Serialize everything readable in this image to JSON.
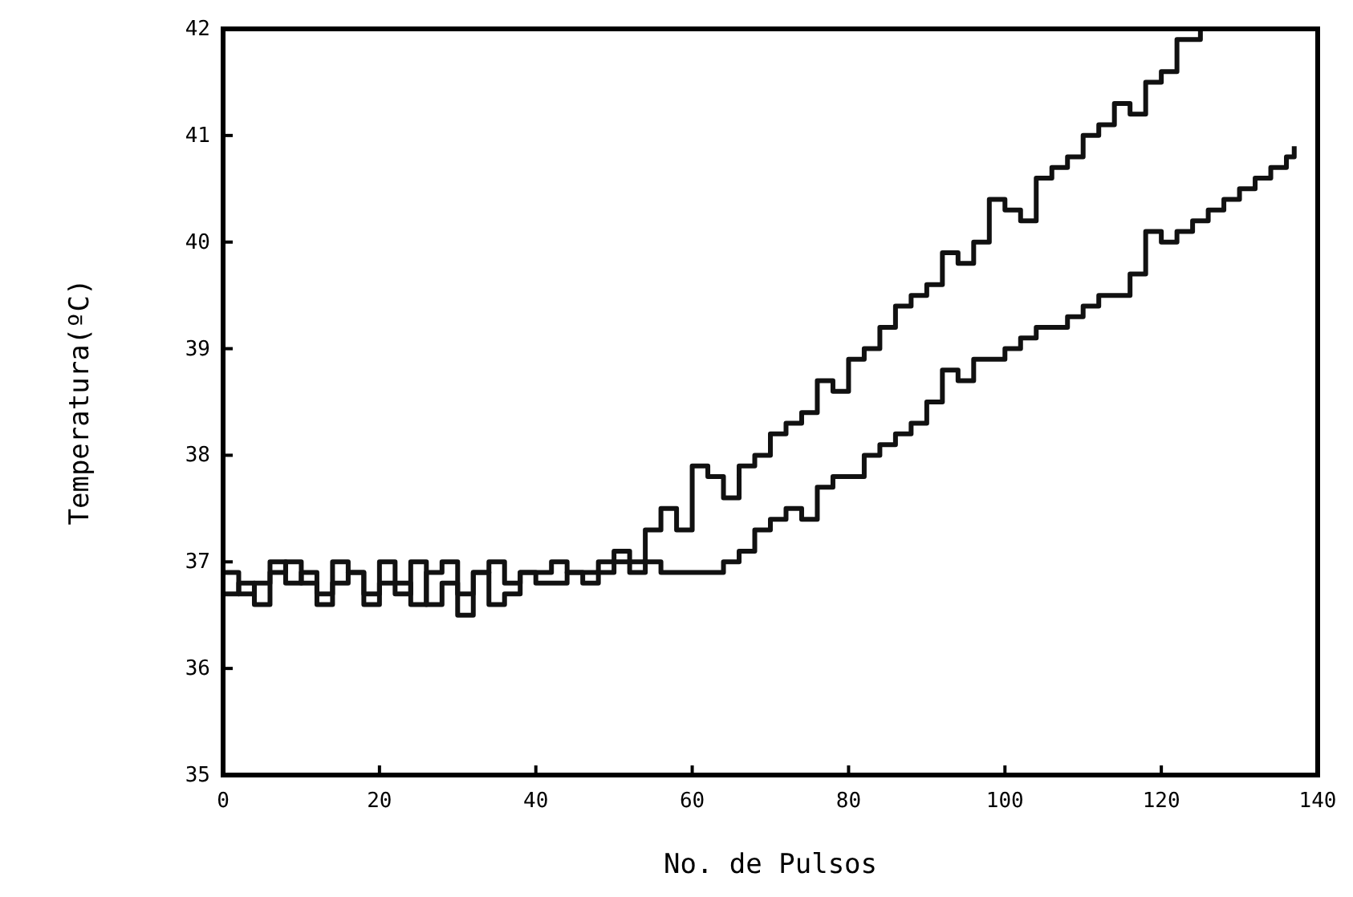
{
  "chart_data": {
    "type": "step",
    "xlabel": "No. de Pulsos",
    "ylabel": "Temperatura(ºC)",
    "xlim": [
      0,
      140
    ],
    "ylim": [
      35,
      42
    ],
    "xticks": [
      0,
      20,
      40,
      60,
      80,
      100,
      120,
      140
    ],
    "yticks": [
      35,
      36,
      37,
      38,
      39,
      40,
      41,
      42
    ],
    "grid": false,
    "series": [
      {
        "color": "#111111",
        "x": [
          0,
          2,
          4,
          6,
          8,
          10,
          12,
          14,
          16,
          18,
          20,
          22,
          24,
          26,
          28,
          30,
          32,
          34,
          36,
          38,
          40,
          42,
          44,
          46,
          48,
          50,
          52,
          54,
          56,
          58,
          60,
          62,
          64,
          66,
          68,
          70,
          72,
          74,
          76,
          78,
          80,
          82,
          84,
          86,
          88,
          90,
          92,
          94,
          96,
          98,
          100,
          102,
          104,
          106,
          108,
          110,
          112,
          114,
          116,
          118,
          120,
          122,
          124,
          125
        ],
        "values": [
          36.9,
          36.7,
          36.8,
          37.0,
          36.8,
          36.9,
          36.7,
          37.0,
          36.9,
          36.7,
          37.0,
          36.8,
          36.6,
          36.9,
          37.0,
          36.7,
          36.9,
          37.0,
          36.8,
          36.9,
          36.9,
          37.0,
          36.9,
          36.9,
          37.0,
          37.1,
          37.0,
          37.3,
          37.5,
          37.3,
          37.9,
          37.8,
          37.6,
          37.9,
          38.0,
          38.2,
          38.3,
          38.4,
          38.7,
          38.6,
          38.9,
          39.0,
          39.2,
          39.4,
          39.5,
          39.6,
          39.9,
          39.8,
          40.0,
          40.4,
          40.3,
          40.2,
          40.6,
          40.7,
          40.8,
          41.0,
          41.1,
          41.3,
          41.2,
          41.5,
          41.6,
          41.9,
          41.9,
          42.0
        ]
      },
      {
        "color": "#111111",
        "x": [
          0,
          2,
          4,
          6,
          8,
          10,
          12,
          14,
          16,
          18,
          20,
          22,
          24,
          26,
          28,
          30,
          32,
          34,
          36,
          38,
          40,
          42,
          44,
          46,
          48,
          50,
          52,
          54,
          56,
          58,
          60,
          62,
          64,
          66,
          68,
          70,
          72,
          74,
          76,
          78,
          80,
          82,
          84,
          86,
          88,
          90,
          92,
          94,
          96,
          98,
          100,
          102,
          104,
          106,
          108,
          110,
          112,
          114,
          116,
          118,
          120,
          122,
          124,
          126,
          128,
          130,
          132,
          134,
          136,
          137
        ],
        "values": [
          36.7,
          36.8,
          36.6,
          36.9,
          37.0,
          36.8,
          36.6,
          36.8,
          36.9,
          36.6,
          36.8,
          36.7,
          37.0,
          36.6,
          36.8,
          36.5,
          36.9,
          36.6,
          36.7,
          36.9,
          36.8,
          36.8,
          36.9,
          36.8,
          36.9,
          37.0,
          36.9,
          37.0,
          36.9,
          36.9,
          36.9,
          36.9,
          37.0,
          37.1,
          37.3,
          37.4,
          37.5,
          37.4,
          37.7,
          37.8,
          37.8,
          38.0,
          38.1,
          38.2,
          38.3,
          38.5,
          38.8,
          38.7,
          38.9,
          38.9,
          39.0,
          39.1,
          39.2,
          39.2,
          39.3,
          39.4,
          39.5,
          39.5,
          39.7,
          40.1,
          40.0,
          40.1,
          40.2,
          40.3,
          40.4,
          40.5,
          40.6,
          40.7,
          40.8,
          40.9
        ]
      }
    ]
  }
}
